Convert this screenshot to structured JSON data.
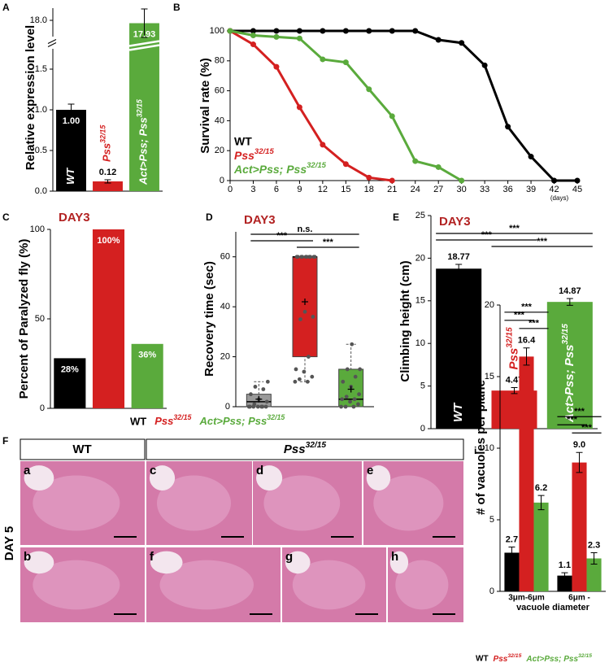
{
  "chart_data": [
    {
      "type": "bar",
      "panel": "A",
      "ylabel": "Relative expression level",
      "categories": [
        "WT",
        "Pss32/15",
        "Act>Pss; Pss32/15"
      ],
      "values": [
        1.0,
        0.12,
        17.93
      ],
      "value_labels": [
        "1.00",
        "0.12",
        "17.93"
      ],
      "errors": [
        0.07,
        0.02,
        0.35
      ],
      "colors": [
        "#000000",
        "#d42020",
        "#5aaa3c"
      ],
      "ylim": [
        0,
        18.3
      ],
      "axis_break": [
        1.75,
        17.6
      ],
      "yticks": [
        {
          "value": 0,
          "label": "0.0"
        },
        {
          "value": 0.5,
          "label": "0.5"
        },
        {
          "value": 1,
          "label": "1.0"
        },
        {
          "value": 1.5,
          "label": "1.5"
        },
        {
          "value": 18,
          "label": "18.0"
        }
      ]
    },
    {
      "type": "line",
      "panel": "B",
      "ylabel": "Survival rate (%)",
      "x_unit": "(days)",
      "x": [
        0,
        3,
        6,
        9,
        12,
        15,
        18,
        21,
        24,
        27,
        30,
        33,
        36,
        39,
        42,
        45
      ],
      "xlim": [
        0,
        45
      ],
      "xticks": [
        0,
        3,
        6,
        9,
        12,
        15,
        18,
        21,
        24,
        27,
        30,
        33,
        36,
        39,
        42,
        45
      ],
      "ylim": [
        0,
        100
      ],
      "yticks": [
        0,
        20,
        40,
        60,
        80,
        100
      ],
      "legend": "lower-left",
      "series": [
        {
          "name": "WT",
          "color": "#000000",
          "values": [
            100,
            100,
            100,
            100,
            100,
            100,
            100,
            100,
            100,
            94,
            92,
            77,
            36,
            16,
            0,
            0
          ]
        },
        {
          "name": "Pss32/15",
          "color": "#d42020",
          "values": [
            100,
            91,
            76,
            49,
            24,
            11,
            2,
            0,
            null,
            null,
            null,
            null,
            null,
            null,
            null,
            null
          ]
        },
        {
          "name": "Act>Pss; Pss32/15",
          "color": "#5aaa3c",
          "values": [
            100,
            97,
            96,
            95,
            81,
            79,
            61,
            43,
            13,
            9,
            0,
            null,
            null,
            null,
            null,
            null
          ]
        }
      ]
    },
    {
      "type": "bar",
      "panel": "C",
      "title": "DAY3",
      "ylabel": "Percent of Paralyzed fly (%)",
      "categories": [
        "WT",
        "Pss32/15",
        "Act>Pss; Pss32/15"
      ],
      "values": [
        28,
        100,
        36
      ],
      "value_labels": [
        "28%",
        "100%",
        "36%"
      ],
      "colors": [
        "#000000",
        "#d42020",
        "#5aaa3c"
      ],
      "ylim": [
        0,
        100
      ],
      "yticks": [
        0,
        50,
        100
      ]
    },
    {
      "type": "box",
      "panel": "D",
      "title": "DAY3",
      "ylabel": "Recovery time (sec)",
      "ylim": [
        0,
        70
      ],
      "yticks": [
        0,
        20,
        40,
        60
      ],
      "boxes": [
        {
          "color": "#9a9a9a",
          "min": 0,
          "q1": 0,
          "median": 2,
          "q3": 5,
          "max": 10,
          "mean": 3,
          "points": [
            0,
            0,
            0,
            0,
            0,
            0,
            0,
            1,
            2,
            3,
            5,
            7,
            8,
            10
          ]
        },
        {
          "color": "#d42020",
          "min": 10,
          "q1": 20,
          "median": 60,
          "q3": 60,
          "max": 60,
          "mean": 42,
          "points": [
            10,
            10,
            11,
            12,
            14,
            15,
            20,
            35,
            36,
            38,
            60,
            60,
            60,
            60,
            60,
            60,
            60,
            60,
            60,
            60
          ]
        },
        {
          "color": "#5aaa3c",
          "min": 0,
          "q1": 0,
          "median": 3,
          "q3": 15,
          "max": 25,
          "mean": 7,
          "points": [
            0,
            0,
            0,
            1,
            2,
            3,
            3,
            4,
            5,
            8,
            10,
            12,
            15,
            15,
            25
          ]
        }
      ],
      "significance": [
        {
          "between": [
            0,
            2
          ],
          "text": "n.s."
        },
        {
          "between": [
            0,
            1
          ],
          "text": "***"
        },
        {
          "between": [
            1,
            2
          ],
          "text": "***"
        }
      ]
    },
    {
      "type": "bar",
      "panel": "E",
      "title": "DAY3",
      "ylabel": "Climbing height (cm)",
      "categories": [
        "WT",
        "Pss32/15",
        "Act>Pss; Pss32/15"
      ],
      "values": [
        18.77,
        4.47,
        14.87
      ],
      "errors": [
        0.5,
        0.35,
        0.4
      ],
      "colors": [
        "#000000",
        "#d42020",
        "#5aaa3c"
      ],
      "ylim": [
        0,
        25
      ],
      "yticks": [
        0,
        5,
        10,
        15,
        20,
        25
      ],
      "significance": [
        {
          "between": [
            0,
            2
          ],
          "text": "***"
        },
        {
          "between": [
            0,
            1
          ],
          "text": "***"
        },
        {
          "between": [
            1,
            2
          ],
          "text": "***"
        }
      ]
    },
    {
      "type": "grouped_bar",
      "panel": "i",
      "ylabel": "# of vacuoles per plane",
      "xlabel": "vacuole diameter",
      "categories": [
        "3μm-6μm",
        "6μm -"
      ],
      "ylim": [
        0,
        20
      ],
      "yticks": [
        0,
        5,
        10,
        15,
        20
      ],
      "series": [
        {
          "name": "WT",
          "color": "#000000",
          "values": [
            2.7,
            1.1
          ],
          "errors": [
            0.4,
            0.2
          ]
        },
        {
          "name": "Pss32/15",
          "color": "#d42020",
          "values": [
            16.4,
            9.0
          ],
          "value_labels": [
            "16.4",
            "9.0"
          ],
          "errors": [
            0.6,
            0.7
          ]
        },
        {
          "name": "Act>Pss; Pss32/15",
          "color": "#5aaa3c",
          "values": [
            6.2,
            2.3
          ],
          "errors": [
            0.5,
            0.4
          ]
        }
      ],
      "significance": [
        {
          "category": 0,
          "between": [
            0,
            2
          ],
          "text": "***"
        },
        {
          "category": 0,
          "between": [
            0,
            1
          ],
          "text": "***"
        },
        {
          "category": 0,
          "between": [
            1,
            2
          ],
          "text": "***"
        },
        {
          "category": 1,
          "between": [
            0,
            2
          ],
          "text": "***"
        },
        {
          "category": 1,
          "between": [
            0,
            1
          ],
          "text": "***"
        },
        {
          "category": 1,
          "between": [
            1,
            2
          ],
          "text": "***"
        }
      ]
    }
  ],
  "histology": {
    "panel": "F",
    "columns": [
      "WT",
      "Pss32/15"
    ],
    "row_label": "DAY 5",
    "images": [
      "a",
      "b",
      "c",
      "d",
      "e",
      "f",
      "g",
      "h"
    ]
  }
}
